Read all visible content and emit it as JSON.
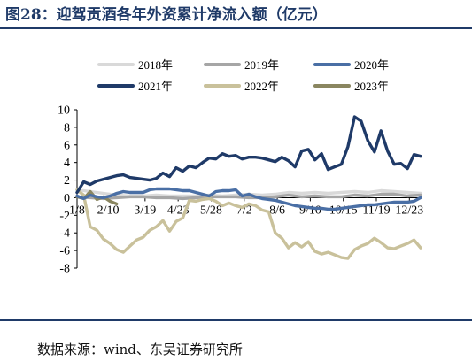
{
  "figure": {
    "title": "图28：迎驾贡酒各年外资累计净流入额（亿元）",
    "source": "数据来源：wind、东吴证券研究所"
  },
  "chart_data": {
    "type": "line",
    "title": "",
    "xlabel": "",
    "ylabel": "",
    "ylim": [
      -8,
      10
    ],
    "yticks": [
      10,
      8,
      6,
      4,
      2,
      0,
      -2,
      -4,
      -6,
      -8
    ],
    "xlim": [
      0,
      52
    ],
    "xticks": [
      {
        "label": "1/8",
        "x": 0
      },
      {
        "label": "2/10",
        "x": 4.7
      },
      {
        "label": "3/19",
        "x": 10.3
      },
      {
        "label": "4/23",
        "x": 15.3
      },
      {
        "label": "5/28",
        "x": 20.3
      },
      {
        "label": "7/2",
        "x": 25.3
      },
      {
        "label": "8/6",
        "x": 30.3
      },
      {
        "label": "9/10",
        "x": 35.3
      },
      {
        "label": "10/15",
        "x": 40.3
      },
      {
        "label": "11/19",
        "x": 45.3
      },
      {
        "label": "12/23",
        "x": 50.3
      }
    ],
    "grid": false,
    "legend": "top",
    "series": [
      {
        "name": "2018年",
        "color": "#d9d9d9",
        "x": [
          0,
          2,
          4,
          6,
          8,
          10,
          12,
          14,
          16,
          18,
          20,
          22,
          24,
          26,
          28,
          30,
          32,
          34,
          36,
          38,
          40,
          42,
          44,
          46,
          48,
          50,
          52
        ],
        "y": [
          0.9,
          0.7,
          0.5,
          0.3,
          0.2,
          0.2,
          0.3,
          0.2,
          0.2,
          0.2,
          0.3,
          0.2,
          0.3,
          0.4,
          0.3,
          0.4,
          0.6,
          0.5,
          0.6,
          0.5,
          0.6,
          0.7,
          0.6,
          0.8,
          0.7,
          0.6,
          0.5
        ]
      },
      {
        "name": "2019年",
        "color": "#a6a6a6",
        "x": [
          0,
          2,
          4,
          6,
          8,
          10,
          12,
          14,
          16,
          18,
          20,
          22,
          24,
          26,
          28,
          30,
          32,
          34,
          36,
          38,
          40,
          42,
          44,
          46,
          48,
          50,
          52
        ],
        "y": [
          0.1,
          0.0,
          -0.1,
          0.0,
          0.1,
          0.1,
          0.0,
          0.0,
          -0.1,
          0.0,
          0.1,
          0.1,
          0.1,
          0.0,
          0.0,
          0.1,
          0.3,
          0.1,
          0.2,
          0.1,
          0.1,
          0.3,
          0.2,
          0.4,
          0.4,
          0.2,
          0.3
        ]
      },
      {
        "name": "2020年",
        "color": "#4a6fa5",
        "x": [
          0,
          1,
          2,
          3,
          4,
          5,
          6,
          7,
          8,
          9,
          10,
          11,
          12,
          13,
          14,
          15,
          16,
          17,
          18,
          19,
          20,
          21,
          22,
          23,
          24,
          25,
          26,
          27,
          28,
          29,
          30,
          31,
          32,
          33,
          34,
          35,
          36,
          37,
          38,
          39,
          40,
          41,
          42,
          43,
          44,
          45,
          46,
          47,
          48,
          49,
          50,
          51,
          52
        ],
        "y": [
          0.2,
          -0.1,
          0.3,
          0.1,
          0.0,
          0.2,
          0.5,
          0.7,
          0.6,
          0.6,
          0.6,
          0.9,
          1.0,
          1.0,
          1.0,
          0.9,
          0.8,
          0.8,
          0.6,
          0.4,
          0.2,
          0.7,
          0.8,
          0.8,
          0.9,
          0.2,
          0.4,
          0.1,
          -0.1,
          -0.2,
          -0.3,
          -0.5,
          -0.7,
          -0.9,
          -1.0,
          -1.1,
          -1.2,
          -1.2,
          -1.3,
          -1.3,
          -1.2,
          -1.1,
          -1.0,
          -0.9,
          -0.8,
          -0.8,
          -0.7,
          -0.6,
          -0.5,
          -0.5,
          -0.5,
          -0.4,
          0.0
        ]
      },
      {
        "name": "2021年",
        "color": "#1f3a68",
        "x": [
          0,
          1,
          2,
          3,
          4,
          5,
          6,
          7,
          8,
          9,
          10,
          11,
          12,
          13,
          14,
          15,
          16,
          17,
          18,
          19,
          20,
          21,
          22,
          23,
          24,
          25,
          26,
          27,
          28,
          29,
          30,
          31,
          32,
          33,
          34,
          35,
          36,
          37,
          38,
          39,
          40,
          41,
          42,
          43,
          44,
          45,
          46,
          47,
          48,
          49,
          50,
          51,
          52
        ],
        "y": [
          0.6,
          1.8,
          1.5,
          1.9,
          2.1,
          2.3,
          2.5,
          2.6,
          2.3,
          2.2,
          2.1,
          2.0,
          2.2,
          2.8,
          2.4,
          3.4,
          3.0,
          3.6,
          3.4,
          4.0,
          4.5,
          4.4,
          5.0,
          4.7,
          4.8,
          4.4,
          4.6,
          4.6,
          4.5,
          4.3,
          4.1,
          4.6,
          4.2,
          3.5,
          5.3,
          5.5,
          4.3,
          5.0,
          3.2,
          3.5,
          3.8,
          5.8,
          9.2,
          8.7,
          6.5,
          5.2,
          7.6,
          5.3,
          3.8,
          3.9,
          3.3,
          4.9,
          4.7
        ]
      },
      {
        "name": "2022年",
        "color": "#c9c19b",
        "x": [
          0,
          1,
          2,
          3,
          4,
          5,
          6,
          7,
          8,
          9,
          10,
          11,
          12,
          13,
          14,
          15,
          16,
          17,
          18,
          19,
          20,
          21,
          22,
          23,
          24,
          25,
          26,
          27,
          28,
          29,
          30,
          31,
          32,
          33,
          34,
          35,
          36,
          37,
          38,
          39,
          40,
          41,
          42,
          43,
          44,
          45,
          46,
          47,
          48,
          49,
          50,
          51,
          52
        ],
        "y": [
          0.9,
          0.3,
          -3.3,
          -3.7,
          -4.7,
          -5.2,
          -5.9,
          -6.2,
          -5.5,
          -4.8,
          -4.5,
          -3.7,
          -3.3,
          -2.6,
          -3.8,
          -2.7,
          -2.3,
          -0.3,
          -0.4,
          -0.2,
          -0.1,
          -0.4,
          -0.9,
          -0.6,
          -0.9,
          -1.1,
          -0.7,
          -0.9,
          -1.4,
          -1.6,
          -4.0,
          -4.6,
          -5.7,
          -5.1,
          -5.6,
          -5.0,
          -6.1,
          -6.4,
          -6.2,
          -6.5,
          -6.8,
          -6.9,
          -5.9,
          -5.5,
          -5.2,
          -4.6,
          -5.1,
          -5.7,
          -5.8,
          -5.5,
          -5.2,
          -4.8,
          -5.7
        ]
      },
      {
        "name": "2023年",
        "color": "#8a8660",
        "x": [
          0,
          1,
          2,
          3,
          4,
          5,
          6
        ],
        "y": [
          0.1,
          -0.1,
          0.7,
          -0.2,
          0.1,
          -0.4,
          -0.7
        ]
      }
    ]
  }
}
